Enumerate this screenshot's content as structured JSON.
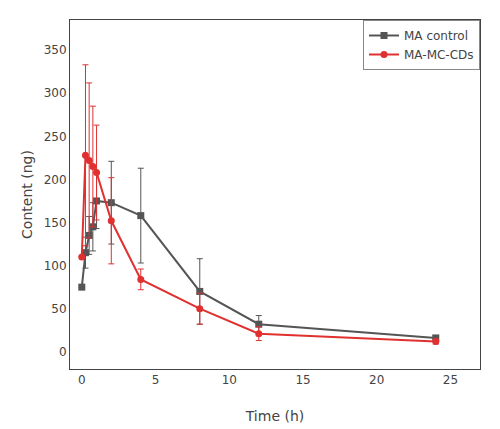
{
  "chart_data": {
    "type": "line",
    "xlabel": "Time (h)",
    "ylabel": "Content (ng)",
    "x": [
      0,
      0.25,
      0.5,
      0.75,
      1.0,
      2.0,
      4.0,
      8.0,
      12.0,
      24.0
    ],
    "series": [
      {
        "name": "MA control",
        "color": "#555555",
        "marker": "square",
        "values": [
          75,
          115,
          135,
          145,
          175,
          173,
          158,
          70,
          32,
          16
        ],
        "yerr": [
          0,
          18,
          22,
          28,
          32,
          48,
          55,
          38,
          10,
          3
        ]
      },
      {
        "name": "MA-MC-CDs",
        "color": "#e03030",
        "marker": "circle",
        "values": [
          110,
          228,
          222,
          215,
          208,
          152,
          84,
          50,
          21,
          12
        ],
        "yerr": [
          0,
          105,
          90,
          70,
          55,
          50,
          12,
          18,
          8,
          3
        ]
      }
    ],
    "xlim": [
      -0.8,
      27
    ],
    "ylim": [
      -20,
      385
    ],
    "xticks": [
      0,
      5,
      10,
      15,
      20,
      25
    ],
    "yticks": [
      0,
      50,
      100,
      150,
      200,
      250,
      300,
      350
    ],
    "legend": "upper right",
    "grid": false
  }
}
